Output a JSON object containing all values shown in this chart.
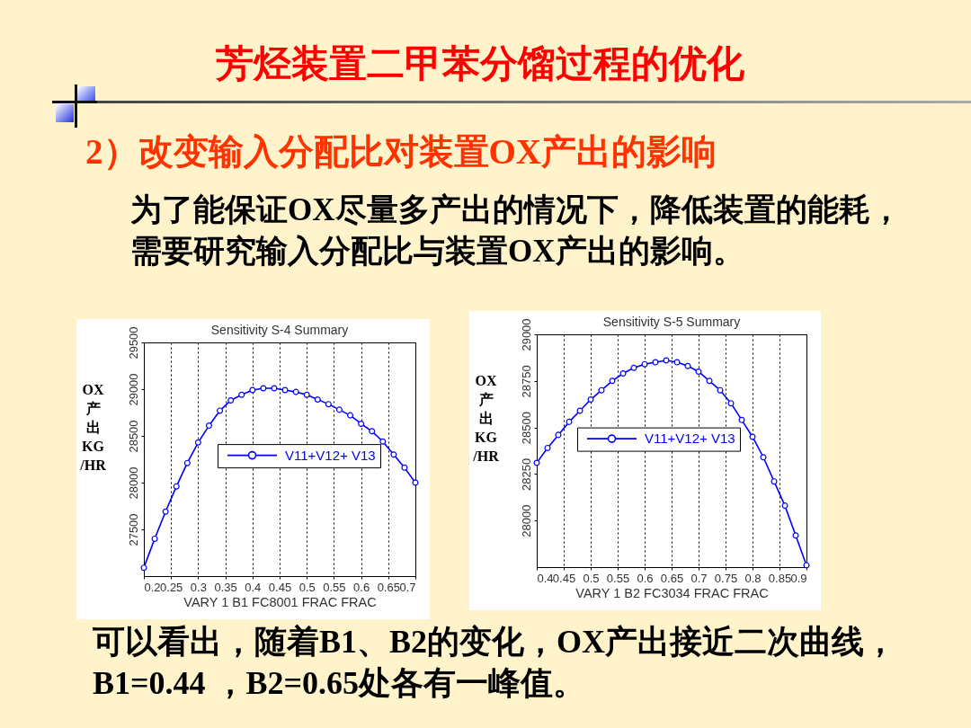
{
  "chart_data": [
    {
      "type": "other",
      "title": "芳烃装置二甲苯分馏过程的优化",
      "subtitle": "2）改变输入分配比对装置OX产出的影响",
      "annotations": [
        "为了能保证OX尽量多产出的情况下，降低装置的能耗，",
        "需要研究输入分配比与装置OX产出的影响。",
        "可以看出，随着B1、B2的变化，OX产出接近二次曲线，",
        "B1=0.44 ，B2=0.65处各有一峰值。"
      ]
    },
    {
      "type": "line",
      "title": "Sensitivity S-4 Summary",
      "xlabel": "VARY 1 B1 FC8001 FRAC FRAC",
      "ylabel": "OX产出KG/HR",
      "x": [
        0.2,
        0.22,
        0.24,
        0.26,
        0.28,
        0.3,
        0.32,
        0.34,
        0.36,
        0.38,
        0.4,
        0.42,
        0.44,
        0.46,
        0.48,
        0.5,
        0.52,
        0.54,
        0.56,
        0.58,
        0.6,
        0.62,
        0.64,
        0.66,
        0.68,
        0.7
      ],
      "series": [
        {
          "name": "V11+V12+ V13",
          "color": "#0000ff",
          "values": [
            27090,
            27400,
            27690,
            27960,
            28210,
            28430,
            28610,
            28770,
            28880,
            28940,
            28990,
            29010,
            29010,
            28990,
            28970,
            28940,
            28890,
            28840,
            28780,
            28720,
            28630,
            28550,
            28440,
            28300,
            28160,
            28000
          ]
        }
      ],
      "xlim": [
        0.2,
        0.7
      ],
      "ylim": [
        27000,
        29500
      ],
      "xticks": [
        0.2,
        0.25,
        0.3,
        0.35,
        0.4,
        0.45,
        0.5,
        0.55,
        0.6,
        0.65,
        0.7
      ],
      "yticks": [
        27500,
        28000,
        28500,
        29000,
        29500
      ],
      "grid": "x",
      "legend": "right",
      "marker": "circle"
    },
    {
      "type": "line",
      "title": "Sensitivity S-5 Summary",
      "xlabel": "VARY 1 B2 FC3034 FRAC FRAC",
      "ylabel": "OX产出KG/HR",
      "x": [
        0.4,
        0.42,
        0.44,
        0.46,
        0.48,
        0.5,
        0.52,
        0.54,
        0.56,
        0.58,
        0.6,
        0.62,
        0.64,
        0.66,
        0.68,
        0.7,
        0.72,
        0.74,
        0.76,
        0.78,
        0.8,
        0.82,
        0.84,
        0.86,
        0.88,
        0.9
      ],
      "series": [
        {
          "name": "V11+V12+ V13",
          "color": "#0000ff",
          "values": [
            28310,
            28390,
            28460,
            28530,
            28590,
            28650,
            28700,
            28750,
            28790,
            28820,
            28840,
            28850,
            28860,
            28850,
            28830,
            28800,
            28750,
            28700,
            28630,
            28540,
            28450,
            28340,
            28210,
            28080,
            27920,
            27760
          ]
        }
      ],
      "xlim": [
        0.4,
        0.9
      ],
      "ylim": [
        27750,
        29000
      ],
      "xticks": [
        0.4,
        0.45,
        0.5,
        0.55,
        0.6,
        0.65,
        0.7,
        0.75,
        0.8,
        0.85,
        0.9
      ],
      "yticks": [
        28000,
        28250,
        28500,
        28750,
        29000
      ],
      "grid": "x",
      "legend": "center",
      "marker": "circle"
    }
  ]
}
